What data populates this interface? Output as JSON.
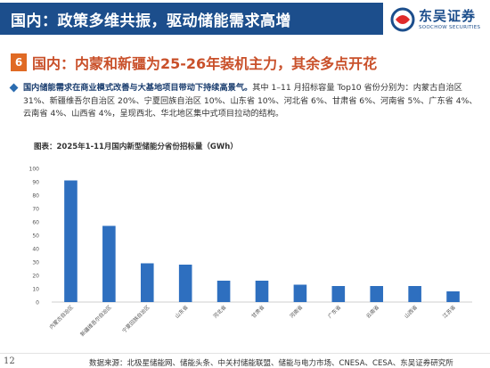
{
  "header": {
    "title": "国内：政策多维共振，驱动储能需求高增",
    "logo_name": "东吴证券",
    "logo_en": "SOOCHOW SECURITIES"
  },
  "section": {
    "number": "6",
    "title": "国内：内蒙和新疆为25-26年装机主力，其余多点开花"
  },
  "bullet": {
    "bold": "国内储能需求在商业模式改善与大基地项目带动下持续高景气。",
    "text": "其中 1–11 月招标容量 Top10 省份分别为：内蒙古自治区 31%、新疆维吾尔自治区 20%、宁夏回族自治区 10%、山东省 10%、河北省 6%、甘肃省 6%、河南省 5%、广东省 4%、云南省 4%、山西省 4%，呈现西北、华北地区集中式项目拉动的结构。"
  },
  "chart_data": {
    "type": "bar",
    "title": "图表：2025年1-11月国内新型储能分省份招标量（GWh）",
    "categories": [
      "内蒙古自治区",
      "新疆维吾尔自治区",
      "宁夏回族自治区",
      "山东省",
      "河北省",
      "甘肃省",
      "河南省",
      "广东省",
      "云南省",
      "山西省",
      "江苏省"
    ],
    "values": [
      91,
      57,
      29,
      28,
      16,
      16,
      13,
      12,
      12,
      12,
      8
    ],
    "ylim": [
      0,
      100
    ],
    "yticks": [
      0,
      10,
      20,
      30,
      40,
      50,
      60,
      70,
      80,
      90,
      100
    ],
    "grid": false,
    "bar_color": "#2e6fbf"
  },
  "footer": {
    "page": "12",
    "source": "数据来源：北极星储能网、储能头条、中关村储能联盟、储能与电力市场、CNESA、CESA、东吴证券研究所"
  }
}
